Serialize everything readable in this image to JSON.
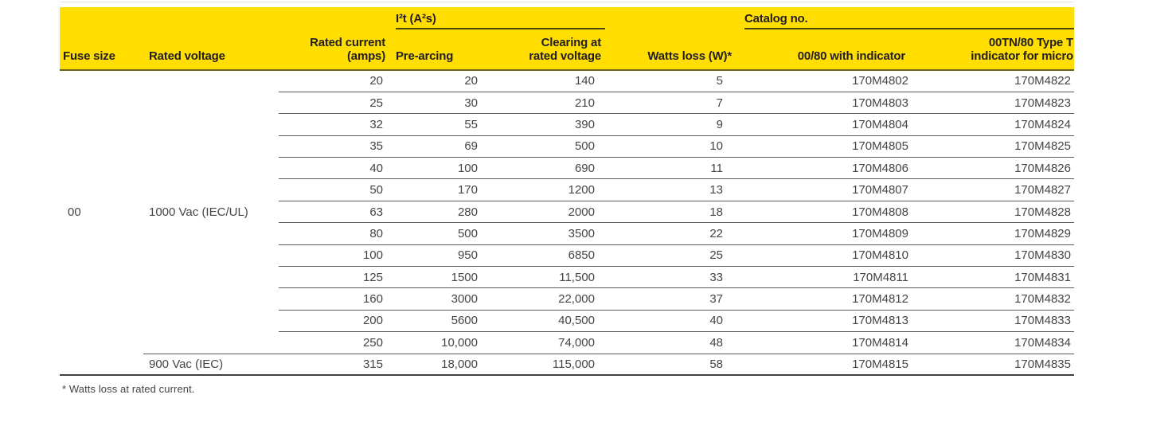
{
  "table": {
    "group_headers": {
      "i2t": "I²t (A²s)",
      "catalog": "Catalog no."
    },
    "columns": {
      "fuse_size": "Fuse size",
      "rated_voltage": "Rated voltage",
      "rated_current_lines": [
        "Rated current",
        "(amps)"
      ],
      "pre_arcing": "Pre-arcing",
      "clearing_lines": [
        "Clearing at",
        "rated voltage"
      ],
      "watts_loss": "Watts loss (W)*",
      "catalog_std": "00/80 with indicator",
      "catalog_tn_lines": [
        "00TN/80 Type T",
        "indicator for micro"
      ]
    },
    "fuse_size_value": "00",
    "voltage_groups": [
      {
        "voltage": "1000 Vac (IEC/UL)",
        "row_count": 13
      },
      {
        "voltage": "900 Vac (IEC)",
        "row_count": 1
      }
    ],
    "rows": [
      {
        "current": "20",
        "pre": "20",
        "clearing": "140",
        "watts": "5",
        "cat_std": "170M4802",
        "cat_tn": "170M4822"
      },
      {
        "current": "25",
        "pre": "30",
        "clearing": "210",
        "watts": "7",
        "cat_std": "170M4803",
        "cat_tn": "170M4823"
      },
      {
        "current": "32",
        "pre": "55",
        "clearing": "390",
        "watts": "9",
        "cat_std": "170M4804",
        "cat_tn": "170M4824"
      },
      {
        "current": "35",
        "pre": "69",
        "clearing": "500",
        "watts": "10",
        "cat_std": "170M4805",
        "cat_tn": "170M4825"
      },
      {
        "current": "40",
        "pre": "100",
        "clearing": "690",
        "watts": "11",
        "cat_std": "170M4806",
        "cat_tn": "170M4826"
      },
      {
        "current": "50",
        "pre": "170",
        "clearing": "1200",
        "watts": "13",
        "cat_std": "170M4807",
        "cat_tn": "170M4827"
      },
      {
        "current": "63",
        "pre": "280",
        "clearing": "2000",
        "watts": "18",
        "cat_std": "170M4808",
        "cat_tn": "170M4828"
      },
      {
        "current": "80",
        "pre": "500",
        "clearing": "3500",
        "watts": "22",
        "cat_std": "170M4809",
        "cat_tn": "170M4829"
      },
      {
        "current": "100",
        "pre": "950",
        "clearing": "6850",
        "watts": "25",
        "cat_std": "170M4810",
        "cat_tn": "170M4830"
      },
      {
        "current": "125",
        "pre": "1500",
        "clearing": "11,500",
        "watts": "33",
        "cat_std": "170M4811",
        "cat_tn": "170M4831"
      },
      {
        "current": "160",
        "pre": "3000",
        "clearing": "22,000",
        "watts": "37",
        "cat_std": "170M4812",
        "cat_tn": "170M4832"
      },
      {
        "current": "200",
        "pre": "5600",
        "clearing": "40,500",
        "watts": "40",
        "cat_std": "170M4813",
        "cat_tn": "170M4833"
      },
      {
        "current": "250",
        "pre": "10,000",
        "clearing": "74,000",
        "watts": "48",
        "cat_std": "170M4814",
        "cat_tn": "170M4834"
      },
      {
        "current": "315",
        "pre": "18,000",
        "clearing": "115,000",
        "watts": "58",
        "cat_std": "170M4815",
        "cat_tn": "170M4835"
      }
    ],
    "footnote": "* Watts loss at rated current."
  },
  "colors": {
    "header_bg": "#ffde00",
    "header_text": "#231f20",
    "body_text": "#454545",
    "row_separator": "#58595b",
    "header_rule": "#6e6316",
    "group_underline": "#4a440f",
    "table_bottom_border": "#404041"
  }
}
